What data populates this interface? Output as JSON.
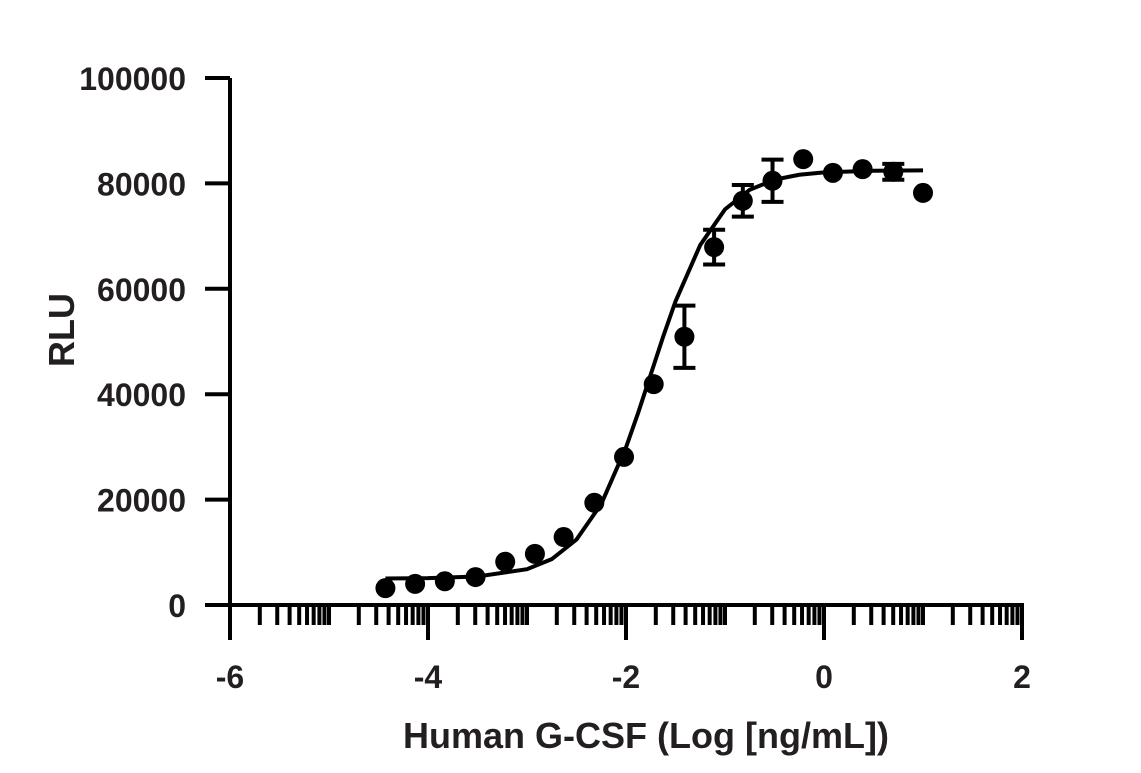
{
  "chart_data": {
    "type": "scatter",
    "x_label": "Human G-CSF (Log [ng/mL])",
    "y_label": "RLU",
    "xlim": [
      -6,
      2
    ],
    "ylim": [
      0,
      100000
    ],
    "xticks": [
      -6,
      -4,
      -2,
      0,
      2
    ],
    "yticks": [
      0,
      20000,
      40000,
      60000,
      80000,
      100000
    ],
    "color": "#000000",
    "series": [
      {
        "x": [
          -4.43,
          -4.13,
          -3.83,
          -3.52,
          -3.22,
          -2.92,
          -2.63,
          -2.32,
          -2.02,
          -1.72,
          -1.41,
          -1.11,
          -0.82,
          -0.52,
          -0.21,
          0.09,
          0.39,
          0.7,
          1.0
        ],
        "values": [
          3200,
          4000,
          4500,
          5300,
          8200,
          9700,
          12900,
          19400,
          28100,
          41900,
          50900,
          67900,
          76700,
          80500,
          84600,
          82000,
          82700,
          82200,
          78200
        ],
        "errors": [
          null,
          null,
          null,
          null,
          null,
          null,
          null,
          null,
          null,
          null,
          5900,
          3300,
          3000,
          4000,
          null,
          null,
          null,
          1500,
          null
        ]
      }
    ],
    "fit": {
      "x": [
        -4.43,
        -4,
        -3.5,
        -3,
        -2.75,
        -2.5,
        -2.25,
        -2,
        -1.875,
        -1.75,
        -1.625,
        -1.5,
        -1.25,
        -1,
        -0.75,
        -0.5,
        -0.25,
        0,
        0.5,
        1.0
      ],
      "values": [
        5025,
        5092,
        5410,
        6792,
        8700,
        12425,
        19170,
        29900,
        36580,
        43750,
        50910,
        57610,
        68320,
        75080,
        78800,
        80700,
        81640,
        82090,
        82410,
        82480
      ]
    }
  }
}
